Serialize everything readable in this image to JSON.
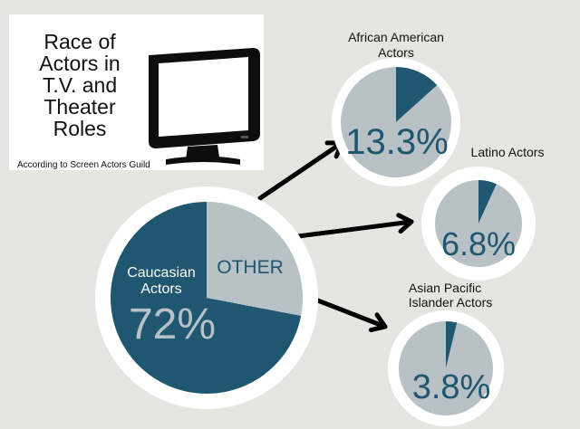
{
  "title_lines": [
    "Race of",
    "Actors in",
    "T.V. and",
    "Theater",
    "Roles"
  ],
  "source": "According to Screen Actors Guild",
  "colors": {
    "background": "#e5e6e1",
    "dark": "#1f5670",
    "light": "#b7c1c6",
    "ring": "#ffffff",
    "text_light": "#ffffff",
    "text_dark": "#1f5670"
  },
  "icons": {
    "title": "monitor-icon",
    "connector": "arrow-icon"
  },
  "chart_data": [
    {
      "type": "pie",
      "slices": [
        {
          "name": "Caucasian Actors",
          "value": 72,
          "label": "72%"
        },
        {
          "name": "OTHER",
          "value": 28,
          "label": ""
        }
      ]
    },
    {
      "type": "pie",
      "name": "African American Actors",
      "slices": [
        {
          "name": "African American Actors",
          "value": 13.3,
          "label": "13.3%"
        },
        {
          "name": "rest",
          "value": 86.7,
          "label": ""
        }
      ]
    },
    {
      "type": "pie",
      "name": "Latino Actors",
      "slices": [
        {
          "name": "Latino Actors",
          "value": 6.8,
          "label": "6.8%"
        },
        {
          "name": "rest",
          "value": 93.2,
          "label": ""
        }
      ]
    },
    {
      "type": "pie",
      "name": "Asian Pacific Islander Actors",
      "slices": [
        {
          "name": "Asian Pacific Islander Actors",
          "value": 3.8,
          "label": "3.8%"
        },
        {
          "name": "rest",
          "value": 96.2,
          "label": ""
        }
      ]
    }
  ]
}
